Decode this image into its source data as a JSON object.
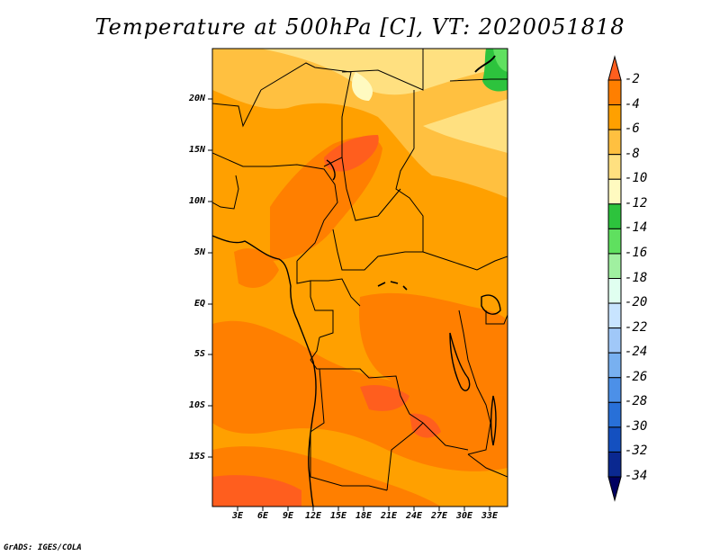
{
  "title": "Temperature at 500hPa [C], VT: 2020051818",
  "credit": "GrADS: IGES/COLA",
  "lat_labels": [
    "20N",
    "15N",
    "10N",
    "5N",
    "EQ",
    "5S",
    "10S",
    "15S"
  ],
  "lon_labels": [
    "3E",
    "6E",
    "9E",
    "12E",
    "15E",
    "18E",
    "21E",
    "24E",
    "27E",
    "30E",
    "33E"
  ],
  "colorbar": {
    "labels": [
      "-2",
      "-4",
      "-6",
      "-8",
      "-10",
      "-12",
      "-14",
      "-16",
      "-18",
      "-20",
      "-22",
      "-24",
      "-26",
      "-28",
      "-30",
      "-32",
      "-34"
    ],
    "colors": [
      "#ff5e1e",
      "#ff7f00",
      "#ffa000",
      "#ffc040",
      "#ffe080",
      "#fffac0",
      "#2dc33d",
      "#5fe05f",
      "#a0f0a0",
      "#e0fff0",
      "#c8e4ff",
      "#a0c8f8",
      "#78b0f0",
      "#4c90e8",
      "#2870d8",
      "#1450c0",
      "#0a2890",
      "#000060"
    ]
  }
}
